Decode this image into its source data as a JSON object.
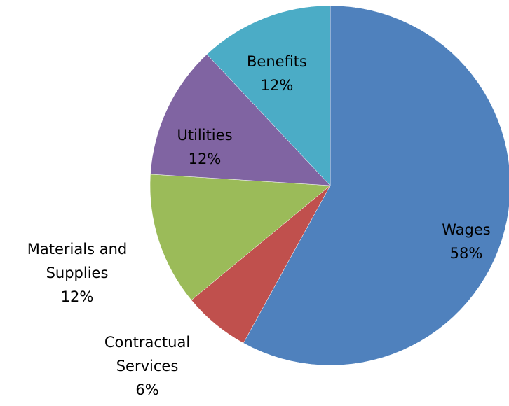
{
  "chart_data": {
    "type": "pie",
    "categories": [
      "Wages",
      "Contractual Services",
      "Materials and Supplies",
      "Utilities",
      "Benefits"
    ],
    "values": [
      58,
      6,
      12,
      12,
      12
    ],
    "value_labels": [
      "58%",
      "6%",
      "12%",
      "12%",
      "12%"
    ],
    "colors": [
      "#4f81bd",
      "#c0504d",
      "#9bbb59",
      "#8064a2",
      "#4bacc6"
    ]
  }
}
